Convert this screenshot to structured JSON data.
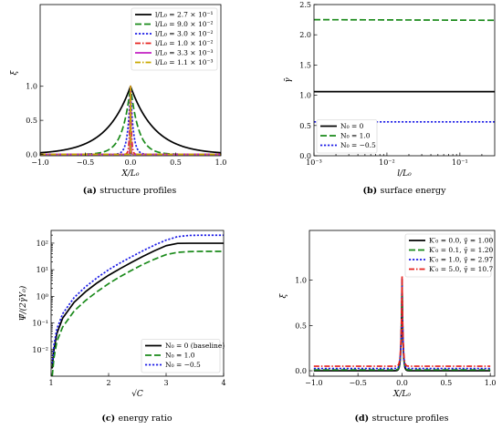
{
  "chart_data": [
    {
      "id": "a",
      "type": "line",
      "caption_tag": "(a)",
      "caption": "structure profiles",
      "xlabel": "X/L₀",
      "ylabel": "ξ",
      "xlim": [
        -1.0,
        1.0
      ],
      "ylim": [
        -0.02,
        2.2
      ],
      "xticks": [
        "−1.0",
        "−0.5",
        "0.0",
        "0.5",
        "1.0"
      ],
      "xtick_values": [
        -1.0,
        -0.5,
        0.0,
        0.5,
        1.0
      ],
      "yticks": [
        "0.0",
        "0.5",
        "1.0"
      ],
      "ytick_values": [
        0.0,
        0.5,
        1.0
      ],
      "legend_position": "top-right",
      "profile": "exp(-|x|/l)",
      "series": [
        {
          "name": "l/L₀ = 2.7 × 10⁻¹",
          "l": 0.27,
          "color": "#000000",
          "dash": "solid"
        },
        {
          "name": "l/L₀ = 9.0 × 10⁻²",
          "l": 0.09,
          "color": "#1a8a1a",
          "dash": "dashed"
        },
        {
          "name": "l/L₀ = 3.0 × 10⁻²",
          "l": 0.03,
          "color": "#1f1fe6",
          "dash": "dotted"
        },
        {
          "name": "l/L₀ = 1.0 × 10⁻²",
          "l": 0.01,
          "color": "#e6231f",
          "dash": "dashdot"
        },
        {
          "name": "l/L₀ = 3.3 × 10⁻³",
          "l": 0.0033,
          "color": "#c21fc2",
          "dash": "solid"
        },
        {
          "name": "l/L₀ = 1.1 × 10⁻³",
          "l": 0.0011,
          "color": "#c9a800",
          "dash": "dashdot"
        }
      ]
    },
    {
      "id": "b",
      "type": "line",
      "caption_tag": "(b)",
      "caption": "surface energy",
      "xlabel": "l/L₀",
      "ylabel": "γ̄",
      "xscale": "log",
      "xlim": [
        0.001,
        0.3
      ],
      "ylim": [
        0.0,
        2.5
      ],
      "xticks": [
        "10⁻³",
        "10⁻²",
        "10⁻¹"
      ],
      "xtick_values": [
        0.001,
        0.01,
        0.1
      ],
      "yticks": [
        "0.0",
        "0.5",
        "1.0",
        "1.5",
        "2.0",
        "2.5"
      ],
      "ytick_values": [
        0.0,
        0.5,
        1.0,
        1.5,
        2.0,
        2.5
      ],
      "legend_position": "lower-left",
      "x": [
        0.001,
        0.3
      ],
      "series": [
        {
          "name": "N₀ = 0",
          "values": [
            1.06,
            1.06
          ],
          "color": "#000000",
          "dash": "solid"
        },
        {
          "name": "N₀ = 1.0",
          "values": [
            2.25,
            2.24
          ],
          "color": "#1a8a1a",
          "dash": "dashed"
        },
        {
          "name": "N₀ = −0.5",
          "values": [
            0.56,
            0.56
          ],
          "color": "#1f1fe6",
          "dash": "dotted"
        }
      ]
    },
    {
      "id": "c",
      "type": "line",
      "caption_tag": "(c)",
      "caption": "energy ratio",
      "xlabel": "√C",
      "ylabel": "Ψ̄/(2γ̄Υ₀)",
      "yscale": "log",
      "xlim": [
        1.0,
        4.0
      ],
      "ylim": [
        0.001,
        300
      ],
      "xticks": [
        "1",
        "2",
        "3",
        "4"
      ],
      "xtick_values": [
        1,
        2,
        3,
        4
      ],
      "yticks": [
        "10⁻²",
        "10⁻¹",
        "10⁰",
        "10¹",
        "10²"
      ],
      "ytick_values": [
        0.01,
        0.1,
        1,
        10,
        100
      ],
      "legend_position": "lower-right",
      "x": [
        1.02,
        1.05,
        1.1,
        1.2,
        1.4,
        1.6,
        1.8,
        2.0,
        2.2,
        2.4,
        2.6,
        2.8,
        3.0,
        3.2,
        3.4,
        3.6,
        3.8,
        4.0
      ],
      "series": [
        {
          "name": "N₀ = 0 (baseline)",
          "color": "#000000",
          "dash": "solid",
          "values": [
            0.002,
            0.01,
            0.04,
            0.15,
            0.6,
            1.5,
            3.2,
            6.2,
            11,
            19,
            32,
            52,
            80,
            98,
            99,
            99,
            99,
            99
          ]
        },
        {
          "name": "N₀ = 1.0",
          "color": "#1a8a1a",
          "dash": "dashed",
          "values": [
            0.001,
            0.005,
            0.02,
            0.07,
            0.28,
            0.7,
            1.5,
            3.0,
            5.5,
            9.5,
            16,
            25,
            37,
            45,
            48,
            49,
            49,
            49
          ]
        },
        {
          "name": "N₀ = −0.5",
          "color": "#1f1fe6",
          "dash": "dotted",
          "values": [
            0.003,
            0.015,
            0.06,
            0.22,
            0.9,
            2.3,
            5,
            10,
            18,
            31,
            52,
            85,
            130,
            175,
            195,
            198,
            198,
            198
          ]
        }
      ]
    },
    {
      "id": "d",
      "type": "line",
      "caption_tag": "(d)",
      "caption": "structure profiles",
      "xlabel": "X/L₀",
      "ylabel": "ξ",
      "xlim": [
        -1.05,
        1.05
      ],
      "ylim": [
        -0.06,
        1.55
      ],
      "xticks": [
        "−1.0",
        "−0.5",
        "0.0",
        "0.5",
        "1.0"
      ],
      "xtick_values": [
        -1.0,
        -0.5,
        0.0,
        0.5,
        1.0
      ],
      "yticks": [
        "0.0",
        "0.5",
        "1.0"
      ],
      "ytick_values": [
        0.0,
        0.5,
        1.0
      ],
      "legend_position": "top-right",
      "profile": "exp(-|x|/l)+floor",
      "x_range": [
        -1.0,
        1.0
      ],
      "series": [
        {
          "name": "K′₀ = 0.0, γ̄ = 1.00",
          "floor": 0.0,
          "l": 0.01,
          "color": "#000000",
          "dash": "solid"
        },
        {
          "name": "K′₀ = 0.1, γ̄ = 1.20",
          "floor": 0.01,
          "l": 0.01,
          "color": "#1a8a1a",
          "dash": "dashed"
        },
        {
          "name": "K′₀ = 1.0, γ̄ = 2.97",
          "floor": 0.025,
          "l": 0.01,
          "color": "#1f1fe6",
          "dash": "dotted"
        },
        {
          "name": "K′₀ = 5.0, γ̄ = 10.7",
          "floor": 0.05,
          "l": 0.01,
          "color": "#e6231f",
          "dash": "dashdot"
        }
      ]
    }
  ]
}
